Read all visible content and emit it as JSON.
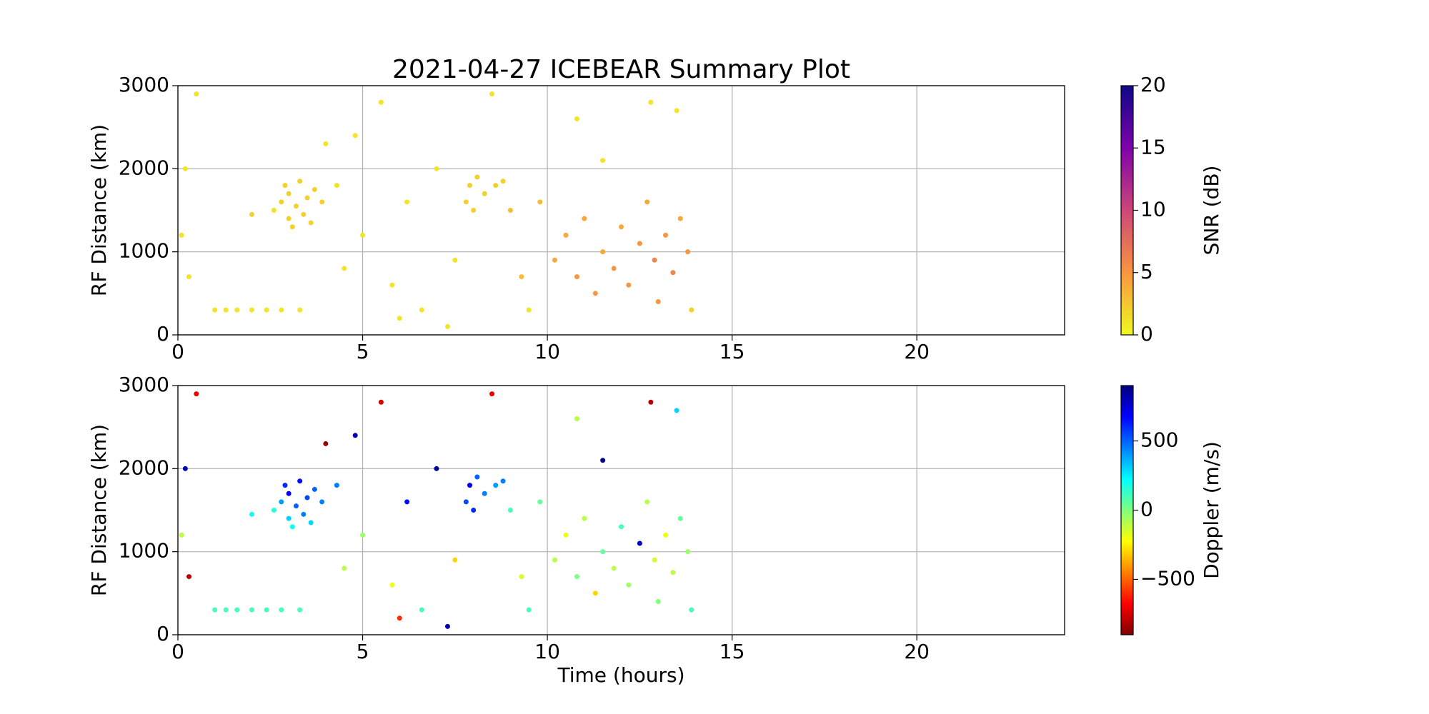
{
  "chart_data": [
    {
      "type": "scatter",
      "title": "2021-04-27 ICEBEAR Summary Plot",
      "ylabel": "RF Distance (km)",
      "xlim": [
        0,
        24
      ],
      "xticks": [
        0,
        5,
        10,
        15,
        20
      ],
      "ylim": [
        0,
        3000
      ],
      "yticks": [
        0,
        1000,
        2000,
        3000
      ],
      "grid": true,
      "colorbar": {
        "label": "SNR (dB)",
        "colormap": "plasma_r",
        "lim": [
          0,
          20
        ],
        "ticks": [
          0,
          5,
          10,
          15,
          20
        ]
      },
      "x": [
        0.1,
        0.2,
        0.3,
        0.5,
        1.0,
        1.3,
        1.6,
        2.0,
        2.4,
        2.8,
        3.3,
        2.6,
        2.8,
        2.9,
        3.0,
        3.0,
        3.1,
        3.2,
        3.3,
        3.4,
        3.5,
        3.6,
        3.7,
        3.9,
        4.3,
        4.0,
        4.5,
        5.0,
        5.5,
        5.8,
        6.2,
        6.6,
        7.0,
        7.3,
        7.5,
        7.8,
        7.9,
        8.0,
        8.1,
        8.3,
        8.6,
        8.8,
        9.0,
        9.3,
        9.5,
        9.8,
        10.2,
        10.5,
        10.8,
        11.0,
        11.3,
        11.5,
        11.8,
        12.0,
        12.2,
        12.5,
        12.7,
        12.9,
        13.0,
        13.2,
        13.4,
        13.6,
        13.8,
        13.9,
        12.8,
        11.5,
        10.8,
        13.5,
        6.0,
        8.5,
        2.0,
        4.8
      ],
      "y": [
        1200,
        2000,
        700,
        2900,
        300,
        300,
        300,
        300,
        300,
        300,
        300,
        1500,
        1600,
        1800,
        1400,
        1700,
        1300,
        1550,
        1850,
        1450,
        1650,
        1350,
        1750,
        1600,
        1800,
        2300,
        800,
        1200,
        2800,
        600,
        1600,
        300,
        2000,
        100,
        900,
        1600,
        1800,
        1500,
        1900,
        1700,
        1800,
        1850,
        1500,
        700,
        300,
        1600,
        900,
        1200,
        700,
        1400,
        500,
        1000,
        800,
        1300,
        600,
        1100,
        1600,
        900,
        400,
        1200,
        750,
        1400,
        1000,
        300,
        2800,
        2100,
        2600,
        2700,
        200,
        2900,
        1450,
        2400
      ],
      "c": [
        1,
        1,
        1,
        1,
        1,
        1,
        1,
        1,
        1,
        1,
        1,
        1,
        2,
        2,
        2,
        2,
        2,
        2,
        2,
        2,
        2,
        2,
        2,
        2,
        1,
        1,
        1,
        1,
        1,
        1,
        1,
        1,
        1,
        1,
        1,
        2,
        2,
        2,
        2,
        2,
        2,
        2,
        3,
        3,
        1,
        3,
        4,
        4,
        5,
        4,
        5,
        4,
        5,
        4,
        5,
        5,
        4,
        6,
        5,
        5,
        6,
        4,
        5,
        2,
        1,
        1,
        1,
        1,
        1,
        1,
        2,
        1
      ]
    },
    {
      "type": "scatter",
      "xlabel": "Time (hours)",
      "ylabel": "RF Distance (km)",
      "xlim": [
        0,
        24
      ],
      "xticks": [
        0,
        5,
        10,
        15,
        20
      ],
      "ylim": [
        0,
        3000
      ],
      "yticks": [
        0,
        1000,
        2000,
        3000
      ],
      "grid": true,
      "colorbar": {
        "label": "Doppler (m/s)",
        "colormap": "jet_r",
        "lim": [
          -900,
          900
        ],
        "ticks": [
          {
            "value": -500,
            "label": "−500"
          },
          0,
          500
        ]
      },
      "x": [
        0.1,
        0.2,
        0.3,
        0.5,
        1.0,
        1.3,
        1.6,
        2.0,
        2.4,
        2.8,
        3.3,
        2.6,
        2.8,
        2.9,
        3.0,
        3.0,
        3.1,
        3.2,
        3.3,
        3.4,
        3.5,
        3.6,
        3.7,
        3.9,
        4.3,
        4.0,
        4.5,
        5.0,
        5.5,
        5.8,
        6.2,
        6.6,
        7.0,
        7.3,
        7.5,
        7.8,
        7.9,
        8.0,
        8.1,
        8.3,
        8.6,
        8.8,
        9.0,
        9.3,
        9.5,
        9.8,
        10.2,
        10.5,
        10.8,
        11.0,
        11.3,
        11.5,
        11.8,
        12.0,
        12.2,
        12.5,
        12.7,
        12.9,
        13.0,
        13.2,
        13.4,
        13.6,
        13.8,
        13.9,
        12.8,
        11.5,
        10.8,
        13.5,
        6.0,
        8.5,
        2.0,
        4.8
      ],
      "y": [
        1200,
        2000,
        700,
        2900,
        300,
        300,
        300,
        300,
        300,
        300,
        300,
        1500,
        1600,
        1800,
        1400,
        1700,
        1300,
        1550,
        1850,
        1450,
        1650,
        1350,
        1750,
        1600,
        1800,
        2300,
        800,
        1200,
        2800,
        600,
        1600,
        300,
        2000,
        100,
        900,
        1600,
        1800,
        1500,
        1900,
        1700,
        1800,
        1850,
        1500,
        700,
        300,
        1600,
        900,
        1200,
        700,
        1400,
        500,
        1000,
        800,
        1300,
        600,
        1100,
        1600,
        900,
        400,
        1200,
        750,
        1400,
        1000,
        300,
        2800,
        2100,
        2600,
        2700,
        200,
        2900,
        1450,
        2400
      ],
      "c": [
        -100,
        800,
        -800,
        -700,
        100,
        100,
        100,
        100,
        100,
        100,
        100,
        150,
        400,
        600,
        300,
        700,
        200,
        500,
        650,
        450,
        550,
        300,
        500,
        450,
        450,
        -850,
        -100,
        -50,
        -750,
        -200,
        650,
        100,
        850,
        800,
        -300,
        550,
        700,
        600,
        500,
        450,
        400,
        450,
        100,
        -150,
        100,
        50,
        -100,
        -200,
        0,
        -100,
        -300,
        50,
        -100,
        100,
        -50,
        800,
        -100,
        -150,
        0,
        -200,
        -100,
        50,
        -50,
        100,
        -800,
        850,
        -100,
        300,
        -600,
        -700,
        200,
        800
      ]
    }
  ]
}
